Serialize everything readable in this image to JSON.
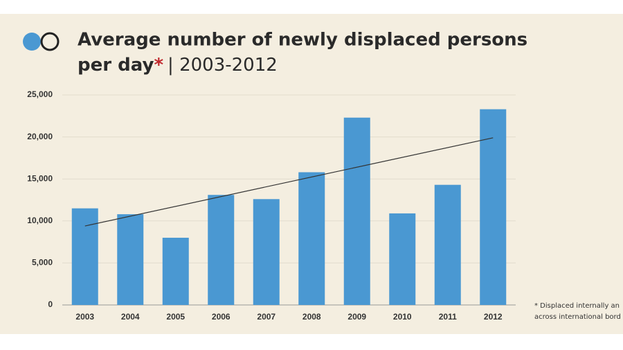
{
  "chart_data": {
    "type": "bar",
    "title": "Average number of newly displaced persons",
    "title_line2": "per day",
    "title_asterisk": "*",
    "subtitle": "| 2003-2012",
    "footnote": [
      "* Displaced internally an",
      "across international bord"
    ],
    "categories": [
      "2003",
      "2004",
      "2005",
      "2006",
      "2007",
      "2008",
      "2009",
      "2010",
      "2011",
      "2012"
    ],
    "values": [
      11500,
      10800,
      8000,
      13100,
      12600,
      15800,
      22300,
      10900,
      14300,
      23300
    ],
    "trendline": [
      9400,
      19900
    ],
    "color": "#4a98d2",
    "ylim": [
      0,
      25000
    ],
    "yticks": [
      0,
      {
        "value": 5000,
        "label": "5,000"
      },
      {
        "value": 10000,
        "label": "10,000"
      },
      {
        "value": 15000,
        "label": "15,000"
      },
      {
        "value": 20000,
        "label": "20,000"
      },
      {
        "value": 25000,
        "label": "25,000"
      }
    ],
    "grid": true
  }
}
